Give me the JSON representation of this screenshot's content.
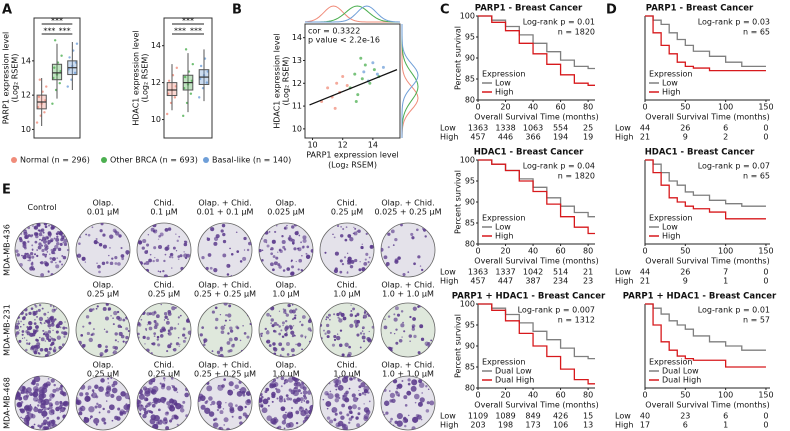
{
  "panel_labels": [
    "A",
    "B",
    "C",
    "D",
    "E"
  ],
  "legend": [
    {
      "name": "Normal (n = 296)",
      "color": "#f08c7a"
    },
    {
      "name": "Other BRCA (n = 693)",
      "color": "#4caf50"
    },
    {
      "name": "Basal-like (n = 140)",
      "color": "#6f9fd8"
    }
  ],
  "chart_data": [
    {
      "type": "box",
      "ylabel": [
        "PARP1 expression level",
        "(Log₂ RSEM)"
      ],
      "ylim": [
        9.5,
        16.5
      ],
      "yticks": [
        10,
        12,
        14
      ],
      "significance": [
        "***",
        "***",
        "***"
      ],
      "groups": [
        {
          "min": 10.2,
          "q1": 11.2,
          "median": 11.6,
          "q3": 12.0,
          "max": 13.0,
          "points": [
            10.4,
            10.8,
            11.0,
            11.3,
            11.5,
            11.7,
            11.9,
            12.2,
            12.5,
            12.9
          ]
        },
        {
          "min": 11.8,
          "q1": 12.9,
          "median": 13.3,
          "q3": 13.8,
          "max": 15.0,
          "points": [
            11.5,
            12.3,
            12.7,
            13.0,
            13.2,
            13.4,
            13.6,
            13.9,
            14.3,
            15.2
          ]
        },
        {
          "min": 12.3,
          "q1": 13.2,
          "median": 13.6,
          "q3": 14.0,
          "max": 15.1,
          "points": [
            12.5,
            12.9,
            13.3,
            13.5,
            13.7,
            13.9,
            14.2,
            14.6,
            15.0
          ]
        }
      ]
    },
    {
      "type": "box",
      "ylabel": [
        "HDAC1 expression level",
        "(Log₂ RSEM)"
      ],
      "ylim": [
        9,
        15.5
      ],
      "yticks": [
        10,
        12,
        14
      ],
      "significance": [
        "***",
        "***",
        "***"
      ],
      "groups": [
        {
          "min": 10.5,
          "q1": 11.3,
          "median": 11.6,
          "q3": 12.0,
          "max": 13.0,
          "points": [
            10.3,
            10.9,
            11.2,
            11.4,
            11.6,
            11.8,
            12.1,
            12.4,
            12.8
          ]
        },
        {
          "min": 10.4,
          "q1": 11.6,
          "median": 12.0,
          "q3": 12.4,
          "max": 13.6,
          "points": [
            10.2,
            10.9,
            11.4,
            11.7,
            11.9,
            12.1,
            12.3,
            12.6,
            13.0,
            13.8
          ]
        },
        {
          "min": 11.0,
          "q1": 11.9,
          "median": 12.3,
          "q3": 12.7,
          "max": 13.8,
          "points": [
            11.2,
            11.7,
            12.0,
            12.2,
            12.4,
            12.6,
            12.9,
            13.3
          ]
        }
      ]
    },
    {
      "type": "scatter",
      "xlabel": [
        "PARP1 expression level",
        "(Log₂ RSEM)"
      ],
      "ylabel": [
        "HDAC1 expression level",
        "(Log₂ RSEM)"
      ],
      "xlim": [
        9.5,
        15.8
      ],
      "ylim": [
        9.6,
        14.6
      ],
      "xticks": [
        10,
        12,
        14
      ],
      "yticks": [
        10,
        11,
        12,
        13,
        14
      ],
      "annotations": [
        "cor = 0.3322",
        "p value < 2.2e-16"
      ],
      "series": [
        {
          "color": "#f08c7a",
          "x": [
            10.6,
            11.0,
            11.3,
            11.6,
            11.8,
            12.0,
            12.3,
            11.5
          ],
          "y": [
            11.2,
            11.8,
            11.4,
            12.0,
            11.6,
            12.3,
            11.9,
            10.9
          ]
        },
        {
          "color": "#4caf50",
          "x": [
            12.5,
            12.8,
            13.0,
            13.3,
            13.5,
            13.8,
            14.1,
            14.4,
            13.2,
            12.9
          ],
          "y": [
            11.8,
            12.4,
            11.5,
            12.2,
            12.8,
            12.0,
            12.6,
            12.3,
            13.1,
            11.2
          ]
        },
        {
          "color": "#6f9fd8",
          "x": [
            13.4,
            13.7,
            14.0,
            14.3,
            14.7
          ],
          "y": [
            12.5,
            12.1,
            12.9,
            12.4,
            12.7
          ]
        }
      ],
      "fit": {
        "color": "#111111",
        "x": [
          9.8,
          15.6
        ],
        "y": [
          11.05,
          12.6
        ]
      }
    },
    {
      "type": "km",
      "title": "PARP1 - Breast Cancer",
      "annotations": [
        "Log-rank p = 0.01",
        "n = 1820"
      ],
      "ylabel": "Percent survival",
      "xlabel": "Overall Survival Time (months)",
      "legend_title": "Expression",
      "xlim": [
        0,
        85
      ],
      "ylim": [
        80,
        100
      ],
      "xticks": [
        0,
        20,
        40,
        60,
        80
      ],
      "yticks": [
        80,
        85,
        90,
        95,
        100
      ],
      "x": [
        0,
        10,
        20,
        30,
        40,
        50,
        60,
        70,
        80,
        85
      ],
      "series": [
        {
          "name": "Low",
          "color": "#7f7f7f",
          "values": [
            100,
            99,
            97.5,
            95.5,
            93.5,
            91.5,
            89.5,
            88,
            87.5,
            87.5
          ]
        },
        {
          "name": "High",
          "color": "#d7191c",
          "values": [
            100,
            98.5,
            96.5,
            93.5,
            91,
            88.5,
            86,
            84,
            83.5,
            83.5
          ]
        }
      ],
      "risk_table": [
        {
          "label": "Low",
          "values": [
            1363,
            1338,
            1063,
            554,
            25
          ]
        },
        {
          "label": "High",
          "values": [
            457,
            446,
            366,
            194,
            19
          ]
        }
      ]
    },
    {
      "type": "km",
      "title": "HDAC1 - Breast Cancer",
      "annotations": [
        "Log-rank p = 0.04",
        "n = 1820"
      ],
      "ylabel": "Percent survival",
      "xlabel": "Overall Survival Time (months)",
      "legend_title": "Expression",
      "xlim": [
        0,
        85
      ],
      "ylim": [
        80,
        100
      ],
      "xticks": [
        0,
        20,
        40,
        60,
        80
      ],
      "yticks": [
        80,
        85,
        90,
        95,
        100
      ],
      "x": [
        0,
        10,
        20,
        30,
        40,
        50,
        60,
        70,
        80,
        85
      ],
      "series": [
        {
          "name": "Low",
          "color": "#7f7f7f",
          "values": [
            100,
            99,
            97.5,
            95.5,
            93.5,
            91,
            89,
            87.5,
            86.5,
            86.5
          ]
        },
        {
          "name": "High",
          "color": "#d7191c",
          "values": [
            100,
            99,
            97.5,
            95,
            92.5,
            89.5,
            86.5,
            84,
            82.5,
            82.5
          ]
        }
      ],
      "risk_table": [
        {
          "label": "Low",
          "values": [
            1363,
            1337,
            1042,
            514,
            21
          ]
        },
        {
          "label": "High",
          "values": [
            457,
            447,
            387,
            234,
            23
          ]
        }
      ]
    },
    {
      "type": "km",
      "title": "PARP1 + HDAC1 - Breast Cancer",
      "annotations": [
        "Log-rank p = 0.007",
        "n = 1312"
      ],
      "ylabel": "Percent survival",
      "xlabel": "Overall Survival Time (months)",
      "legend_title": "Expression",
      "xlim": [
        0,
        85
      ],
      "ylim": [
        80,
        100
      ],
      "xticks": [
        0,
        20,
        40,
        60,
        80
      ],
      "yticks": [
        80,
        85,
        90,
        95,
        100
      ],
      "x": [
        0,
        10,
        20,
        30,
        40,
        50,
        60,
        70,
        80,
        85
      ],
      "series": [
        {
          "name": "Dual Low",
          "color": "#7f7f7f",
          "values": [
            100,
            99,
            97.5,
            95.5,
            93.5,
            91.5,
            89.5,
            87.5,
            87,
            87
          ]
        },
        {
          "name": "Dual High",
          "color": "#d7191c",
          "values": [
            100,
            98.5,
            96,
            93,
            90,
            87.5,
            84.5,
            82,
            81,
            81
          ]
        }
      ],
      "risk_table": [
        {
          "label": "Low",
          "values": [
            1109,
            1089,
            849,
            426,
            15
          ]
        },
        {
          "label": "High",
          "values": [
            203,
            198,
            173,
            106,
            13
          ]
        }
      ]
    },
    {
      "type": "km",
      "title": "PARP1 - Breast Cancer",
      "annotations": [
        "Log-rank p = 0.03",
        "n = 65"
      ],
      "xlabel": "Overall Survival Time (months)",
      "legend_title": "Expression",
      "xlim": [
        0,
        155
      ],
      "ylim": [
        0,
        100
      ],
      "xticks": [
        0,
        50,
        100,
        150
      ],
      "x": [
        0,
        10,
        20,
        30,
        40,
        50,
        60,
        80,
        100,
        120,
        150
      ],
      "series": [
        {
          "name": "Low",
          "color": "#7f7f7f",
          "values": [
            100,
            95,
            90,
            80,
            72,
            65,
            58,
            52,
            45,
            40,
            40
          ]
        },
        {
          "name": "High",
          "color": "#d7191c",
          "values": [
            100,
            80,
            65,
            55,
            45,
            40,
            38,
            35,
            35,
            35,
            35
          ]
        }
      ],
      "risk_table": [
        {
          "label": "Low",
          "values": [
            44,
            26,
            6,
            0
          ]
        },
        {
          "label": "High",
          "values": [
            21,
            9,
            2,
            0
          ]
        }
      ]
    },
    {
      "type": "km",
      "title": "HDAC1 - Breast Cancer",
      "annotations": [
        "Log-rank p = 0.07",
        "n = 65"
      ],
      "xlabel": "Overall Survival Time (months)",
      "legend_title": "Expression",
      "xlim": [
        0,
        155
      ],
      "ylim": [
        0,
        100
      ],
      "xticks": [
        0,
        50,
        100,
        150
      ],
      "x": [
        0,
        10,
        20,
        30,
        40,
        50,
        60,
        80,
        100,
        120,
        150
      ],
      "series": [
        {
          "name": "Low",
          "color": "#7f7f7f",
          "values": [
            100,
            95,
            85,
            75,
            70,
            62,
            58,
            52,
            48,
            45,
            45
          ]
        },
        {
          "name": "High",
          "color": "#d7191c",
          "values": [
            100,
            85,
            70,
            55,
            50,
            45,
            42,
            38,
            30,
            30,
            30
          ]
        }
      ],
      "risk_table": [
        {
          "label": "Low",
          "values": [
            44,
            26,
            7,
            0
          ]
        },
        {
          "label": "High",
          "values": [
            21,
            9,
            1,
            0
          ]
        }
      ]
    },
    {
      "type": "km",
      "title": "PARP1 + HDAC1 - Breast Cancer",
      "annotations": [
        "Log-rank p = 0.01",
        "n = 57"
      ],
      "xlabel": "Overall Survival Time (months)",
      "legend_title": "Expression",
      "xlim": [
        0,
        155
      ],
      "ylim": [
        0,
        100
      ],
      "xticks": [
        0,
        50,
        100,
        150
      ],
      "x": [
        0,
        10,
        20,
        30,
        40,
        50,
        60,
        80,
        100,
        120,
        150
      ],
      "series": [
        {
          "name": "Dual Low",
          "color": "#7f7f7f",
          "values": [
            100,
            95,
            88,
            80,
            75,
            70,
            62,
            55,
            50,
            45,
            45
          ]
        },
        {
          "name": "Dual High",
          "color": "#d7191c",
          "values": [
            100,
            75,
            55,
            45,
            38,
            35,
            33,
            33,
            25,
            25,
            25
          ]
        }
      ],
      "risk_table": [
        {
          "label": "Low",
          "values": [
            40,
            23,
            6,
            0
          ]
        },
        {
          "label": "High",
          "values": [
            17,
            6,
            1,
            0
          ]
        }
      ]
    }
  ],
  "panel_e": {
    "rows": [
      {
        "label": "MDA-MB-436",
        "headers": [
          [
            "Control"
          ],
          [
            "Olap.",
            "0.01 µM"
          ],
          [
            "Chid.",
            "0.1 µM"
          ],
          [
            "Olap. + Chid.",
            "0.01 + 0.1 µM"
          ],
          [
            "Olap.",
            "0.025 µM"
          ],
          [
            "Chid.",
            "0.25 µM"
          ],
          [
            "Olap. + Chid.",
            "0.025 + 0.25 µM"
          ]
        ]
      },
      {
        "label": "MDA-MB-231",
        "headers": [
          [
            "Olap.",
            "0.25 µM"
          ],
          [
            "Chid.",
            "0.25 µM"
          ],
          [
            "Olap. + Chid.",
            "0.25 + 0.25 µM"
          ],
          [
            "Olap.",
            "1.0 µM"
          ],
          [
            "Chid.",
            "1.0 µM"
          ],
          [
            "Olap. + Chid.",
            "1.0 + 1.0 µM"
          ]
        ]
      },
      {
        "label": "MDA-MB-468",
        "headers": [
          [
            "Olap.",
            "0.25 µM"
          ],
          [
            "Chid.",
            "0.25 µM"
          ],
          [
            "Olap. + Chid.",
            "0.25 + 0.25 µM"
          ],
          [
            "Olap.",
            "1.0 µM"
          ],
          [
            "Chid.",
            "1.0 µM"
          ],
          [
            "Olap. + Chid.",
            "1.0 + 1.0 µM"
          ]
        ]
      }
    ]
  }
}
